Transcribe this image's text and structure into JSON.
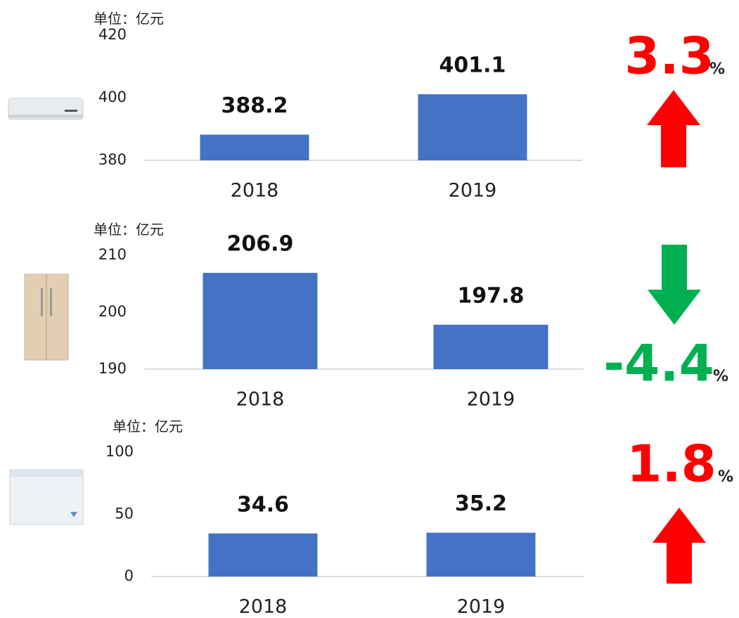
{
  "chart_data": [
    {
      "type": "bar",
      "unit_label": "单位：亿元",
      "categories": [
        "2018",
        "2019"
      ],
      "values": [
        388.2,
        401.1
      ],
      "color": "#4472c4",
      "ylim": [
        380,
        420
      ],
      "yticks": [
        380,
        400,
        420
      ],
      "change": "3.3",
      "change_unit": "%",
      "arrow": "up",
      "change_color": "#ff0000"
    },
    {
      "type": "bar",
      "unit_label": "单位：亿元",
      "categories": [
        "2018",
        "2019"
      ],
      "values": [
        206.9,
        197.8
      ],
      "color": "#4472c4",
      "ylim": [
        190,
        210
      ],
      "yticks": [
        190,
        200,
        210
      ],
      "change": "-4.4",
      "change_unit": "%",
      "arrow": "down",
      "change_color": "#00b050"
    },
    {
      "type": "bar",
      "unit_label": "单位：亿元",
      "categories": [
        "2018",
        "2019"
      ],
      "values": [
        34.6,
        35.2
      ],
      "color": "#4472c4",
      "ylim": [
        0,
        100
      ],
      "yticks": [
        0,
        50,
        100
      ],
      "change": "1.8",
      "change_unit": "%",
      "arrow": "up",
      "change_color": "#ff0000"
    }
  ]
}
